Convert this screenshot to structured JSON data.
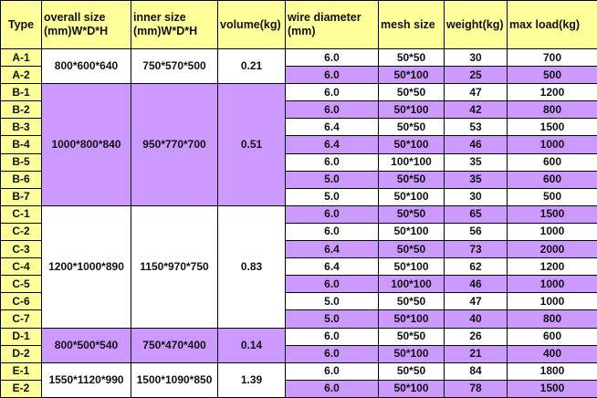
{
  "colors": {
    "header": "#FFFF99",
    "purple": "#CC99FF",
    "white": "#FFFFFF"
  },
  "headers": [
    "Type",
    "overall size (mm)W*D*H",
    "inner size (mm)W*D*H",
    "volume(kg)",
    "wire diameter (mm)",
    "mesh size",
    "weight(kg)",
    "max load(kg)"
  ],
  "groups": [
    {
      "overall": "800*600*640",
      "inner": "750*570*500",
      "volume": "0.21",
      "shade": "white",
      "rows": [
        [
          "A-1",
          "6.0",
          "50*50",
          "30",
          "700"
        ],
        [
          "A-2",
          "6.0",
          "50*100",
          "25",
          "500"
        ]
      ]
    },
    {
      "overall": "1000*800*840",
      "inner": "950*770*700",
      "volume": "0.51",
      "shade": "purple",
      "rows": [
        [
          "B-1",
          "6.0",
          "50*50",
          "47",
          "1200"
        ],
        [
          "B-2",
          "6.0",
          "50*100",
          "42",
          "800"
        ],
        [
          "B-3",
          "6.4",
          "50*50",
          "53",
          "1500"
        ],
        [
          "B-4",
          "6.4",
          "50*100",
          "46",
          "1000"
        ],
        [
          "B-5",
          "6.0",
          "100*100",
          "35",
          "600"
        ],
        [
          "B-6",
          "5.0",
          "50*50",
          "35",
          "600"
        ],
        [
          "B-7",
          "5.0",
          "50*100",
          "30",
          "500"
        ]
      ]
    },
    {
      "overall": "1200*1000*890",
      "inner": "1150*970*750",
      "volume": "0.83",
      "shade": "white",
      "rows": [
        [
          "C-1",
          "6.0",
          "50*50",
          "65",
          "1500"
        ],
        [
          "C-2",
          "6.0",
          "50*100",
          "56",
          "1000"
        ],
        [
          "C-3",
          "6.4",
          "50*50",
          "73",
          "2000"
        ],
        [
          "C-4",
          "6.4",
          "50*100",
          "62",
          "1200"
        ],
        [
          "C-5",
          "6.0",
          "100*100",
          "46",
          "1000"
        ],
        [
          "C-6",
          "5.0",
          "50*50",
          "47",
          "1000"
        ],
        [
          "C-7",
          "5.0",
          "50*100",
          "40",
          "800"
        ]
      ]
    },
    {
      "overall": "800*500*540",
      "inner": "750*470*400",
      "volume": "0.14",
      "shade": "purple",
      "rows": [
        [
          "D-1",
          "6.0",
          "50*50",
          "26",
          "600"
        ],
        [
          "D-2",
          "6.0",
          "50*100",
          "21",
          "400"
        ]
      ]
    },
    {
      "overall": "1550*1120*990",
      "inner": "1500*1090*850",
      "volume": "1.39",
      "shade": "white",
      "rows": [
        [
          "E-1",
          "6.0",
          "50*50",
          "84",
          "1800"
        ],
        [
          "E-2",
          "6.0",
          "50*100",
          "78",
          "1500"
        ]
      ]
    }
  ]
}
